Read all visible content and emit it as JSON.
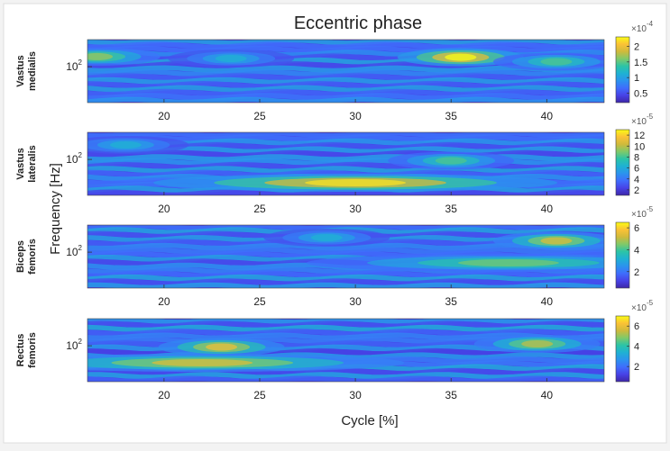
{
  "chart_data": {
    "type": "heatmap",
    "title": "Eccentric phase",
    "xlabel": "Cycle [%]",
    "ylabel": "Frequency [Hz]",
    "xlim": [
      16,
      43
    ],
    "x_ticks": [
      20,
      25,
      30,
      35,
      40
    ],
    "y_tick_label": "10^2",
    "y_scale": "log",
    "colormap": "parula",
    "panels": [
      {
        "name": "Vastus medialis",
        "label_lines": [
          "Vastus",
          "medialis"
        ],
        "colorbar_exponent": "×10^-4",
        "colorbar_ticks": [
          0.5,
          1,
          1.5,
          2
        ],
        "color_range": [
          0.2,
          2.3
        ],
        "hotspots": [
          {
            "x": 16.5,
            "band": 0.27,
            "intensity": 0.7
          },
          {
            "x": 23.5,
            "band": 0.3,
            "intensity": 0.45
          },
          {
            "x": 35.5,
            "band": 0.28,
            "intensity": 1.0
          },
          {
            "x": 40.5,
            "band": 0.35,
            "intensity": 0.6
          }
        ]
      },
      {
        "name": "Vastus lateralis",
        "label_lines": [
          "Vastus",
          "lateralis"
        ],
        "colorbar_exponent": "×10^-5",
        "colorbar_ticks": [
          2,
          4,
          6,
          8,
          10,
          12
        ],
        "color_range": [
          1,
          13
        ],
        "hotspots": [
          {
            "x": 18,
            "band": 0.2,
            "intensity": 0.45
          },
          {
            "x": 35,
            "band": 0.45,
            "intensity": 0.6
          },
          {
            "x": 30,
            "band": 0.8,
            "intensity": 0.95
          }
        ]
      },
      {
        "name": "Biceps femoris",
        "label_lines": [
          "Biceps",
          "femoris"
        ],
        "colorbar_exponent": "×10^-5",
        "colorbar_ticks": [
          2,
          4,
          6
        ],
        "color_range": [
          0.5,
          6.5
        ],
        "hotspots": [
          {
            "x": 28.5,
            "band": 0.2,
            "intensity": 0.45
          },
          {
            "x": 40.5,
            "band": 0.25,
            "intensity": 0.8
          },
          {
            "x": 38,
            "band": 0.6,
            "intensity": 0.65
          }
        ]
      },
      {
        "name": "Rectus femoris",
        "label_lines": [
          "Rectus",
          "femoris"
        ],
        "colorbar_exponent": "×10^-5",
        "colorbar_ticks": [
          2,
          4,
          6
        ],
        "color_range": [
          0.5,
          7
        ],
        "hotspots": [
          {
            "x": 23,
            "band": 0.45,
            "intensity": 0.85
          },
          {
            "x": 39.5,
            "band": 0.4,
            "intensity": 0.75
          },
          {
            "x": 22,
            "band": 0.7,
            "intensity": 0.8
          }
        ]
      }
    ]
  }
}
